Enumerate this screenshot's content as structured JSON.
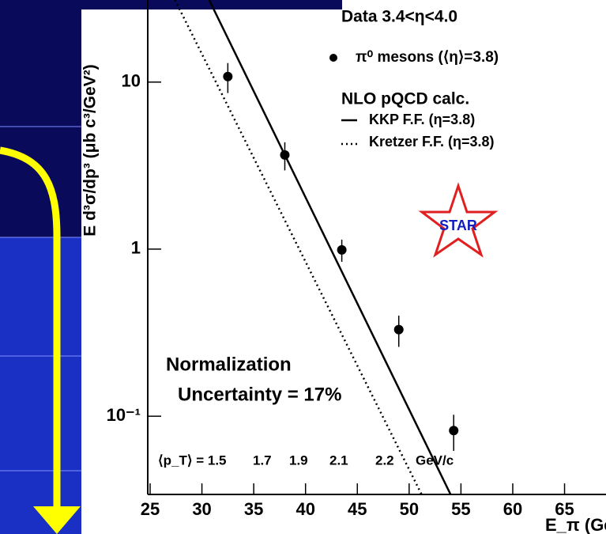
{
  "chart_data": {
    "type": "scatter",
    "x_label": "E_π (GeV)",
    "y_label": "E d³σ/dp³ (μb c³/GeV²)",
    "xlim": [
      25,
      69
    ],
    "ylim": [
      0.034,
      31
    ],
    "ylog": true,
    "xticks": [
      25,
      30,
      35,
      40,
      45,
      50,
      55,
      60,
      65
    ],
    "yticks": [
      10,
      1,
      {
        "value": 0.1,
        "label": "10⁻¹"
      }
    ],
    "legend_titles": [
      "Data 3.4<η<4.0",
      "NLO pQCD calc."
    ],
    "series": [
      {
        "name": "π⁰ mesons (⟨η⟩=3.8)",
        "type": "scatter",
        "color": "#000000",
        "x": [
          32.5,
          38.0,
          43.5,
          49.0,
          54.3
        ],
        "values": [
          10.8,
          3.66,
          0.99,
          0.33,
          0.082
        ],
        "errors": [
          2.2,
          0.7,
          0.15,
          0.07,
          0.02
        ]
      },
      {
        "name": "KKP F.F. (η=3.8)",
        "type": "line",
        "style": "solid",
        "color": "#000000",
        "x": [
          30.7,
          54.0
        ],
        "values": [
          31,
          0.034
        ]
      },
      {
        "name": "Kretzer F.F. (η=3.8)",
        "type": "line",
        "style": "dotted",
        "color": "#000000",
        "x": [
          27.4,
          51.2
        ],
        "values": [
          31,
          0.034
        ]
      }
    ],
    "annotations": [
      "Normalization",
      "Uncertainty = 17%",
      "STAR"
    ],
    "pt_labels": [
      "⟨p_T⟩ = 1.5",
      "1.7",
      "1.9",
      "2.1",
      "2.2",
      "GeV/c"
    ]
  }
}
